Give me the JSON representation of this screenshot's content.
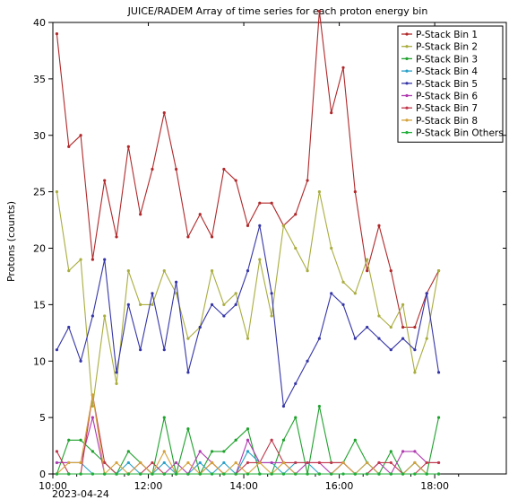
{
  "chart_data": {
    "type": "line",
    "title": "JUICE/RADEM  Array of time series for each proton energy bin",
    "ylabel": "Protons (counts)",
    "xlabel": "",
    "x_date_label": "2023-04-24",
    "ylim": [
      0,
      40
    ],
    "y_ticks": [
      0,
      5,
      10,
      15,
      20,
      25,
      30,
      35,
      40
    ],
    "x_range": [
      "10:00",
      "19:30"
    ],
    "x_ticks": [
      "10:00",
      "12:00",
      "14:00",
      "16:00",
      "18:00"
    ],
    "grid": false,
    "legend_position": "top-right",
    "x": [
      "10:05",
      "10:20",
      "10:35",
      "10:50",
      "11:05",
      "11:20",
      "11:35",
      "11:50",
      "12:05",
      "12:20",
      "12:35",
      "12:50",
      "13:05",
      "13:20",
      "13:35",
      "13:50",
      "14:05",
      "14:20",
      "14:35",
      "14:50",
      "15:05",
      "15:20",
      "15:35",
      "15:50",
      "16:05",
      "16:20",
      "16:35",
      "16:50",
      "17:05",
      "17:20",
      "17:35",
      "17:50",
      "18:05",
      "18:20",
      "18:35",
      "18:50",
      "19:05"
    ],
    "series": [
      {
        "name": "P-Stack Bin 1",
        "color": "#b0282a",
        "values": [
          39,
          29,
          30,
          19,
          26,
          21,
          29,
          23,
          27,
          32,
          27,
          21,
          23,
          21,
          27,
          26,
          22,
          24,
          24,
          22,
          23,
          26,
          41,
          32,
          36,
          25,
          18,
          22,
          18,
          13,
          13,
          16,
          18,
          null,
          null,
          null,
          null
        ]
      },
      {
        "name": "P-Stack Bin 2",
        "color": "#a9ad3e",
        "values": [
          25,
          18,
          19,
          6,
          14,
          8,
          18,
          15,
          15,
          18,
          16,
          12,
          13,
          18,
          15,
          16,
          12,
          19,
          14,
          22,
          20,
          18,
          25,
          20,
          17,
          16,
          19,
          14,
          13,
          15,
          9,
          12,
          18,
          null,
          null,
          null,
          null
        ]
      },
      {
        "name": "P-Stack Bin 3",
        "color": "#1fa12d",
        "values": [
          0,
          3,
          3,
          2,
          1,
          0,
          2,
          1,
          0,
          5,
          0,
          4,
          0,
          2,
          2,
          3,
          4,
          0,
          0,
          3,
          5,
          0,
          6,
          1,
          1,
          3,
          1,
          0,
          2,
          0,
          1,
          0,
          5,
          null,
          null,
          null,
          null
        ]
      },
      {
        "name": "P-Stack Bin 4",
        "color": "#28a0c8",
        "values": [
          1,
          1,
          1,
          0,
          0,
          0,
          1,
          0,
          0,
          1,
          0,
          0,
          1,
          0,
          1,
          0,
          2,
          1,
          1,
          0,
          1,
          1,
          0,
          0,
          1,
          0,
          1,
          0,
          0,
          0,
          1,
          0,
          0,
          null,
          null,
          null,
          null
        ]
      },
      {
        "name": "P-Stack Bin 5",
        "color": "#3535a8",
        "values": [
          11,
          13,
          10,
          14,
          19,
          9,
          15,
          11,
          16,
          11,
          17,
          9,
          13,
          15,
          14,
          15,
          18,
          22,
          16,
          6,
          8,
          10,
          12,
          16,
          15,
          12,
          13,
          12,
          11,
          12,
          11,
          16,
          9,
          null,
          null,
          null,
          null
        ]
      },
      {
        "name": "P-Stack Bin 6",
        "color": "#b03ab0",
        "values": [
          1,
          1,
          1,
          5,
          0,
          0,
          0,
          1,
          0,
          0,
          1,
          0,
          2,
          1,
          0,
          0,
          3,
          1,
          1,
          1,
          0,
          1,
          1,
          0,
          1,
          0,
          0,
          1,
          0,
          2,
          2,
          1,
          1,
          null,
          null,
          null,
          null
        ]
      },
      {
        "name": "P-Stack Bin 7",
        "color": "#c0364a",
        "values": [
          2,
          0,
          0,
          7,
          1,
          0,
          0,
          0,
          1,
          0,
          0,
          0,
          0,
          1,
          0,
          0,
          1,
          1,
          3,
          1,
          1,
          1,
          1,
          1,
          1,
          0,
          0,
          1,
          1,
          0,
          0,
          1,
          1,
          null,
          null,
          null,
          null
        ]
      },
      {
        "name": "P-Stack Bin 8",
        "color": "#d4a23a",
        "values": [
          0,
          1,
          1,
          7,
          0,
          1,
          0,
          1,
          0,
          2,
          0,
          1,
          0,
          1,
          0,
          1,
          0,
          1,
          0,
          1,
          0,
          0,
          0,
          0,
          1,
          0,
          1,
          0,
          0,
          0,
          1,
          0,
          0,
          null,
          null,
          null,
          null
        ]
      },
      {
        "name": "P-Stack Bin Others",
        "color": "#1fae3a",
        "values": [
          0,
          0,
          0,
          0,
          0,
          0,
          0,
          0,
          0,
          0,
          0,
          0,
          0,
          0,
          0,
          0,
          0,
          0,
          0,
          0,
          0,
          0,
          0,
          0,
          0,
          0,
          0,
          0,
          0,
          0,
          0,
          0,
          0,
          null,
          null,
          null,
          null
        ]
      }
    ]
  }
}
